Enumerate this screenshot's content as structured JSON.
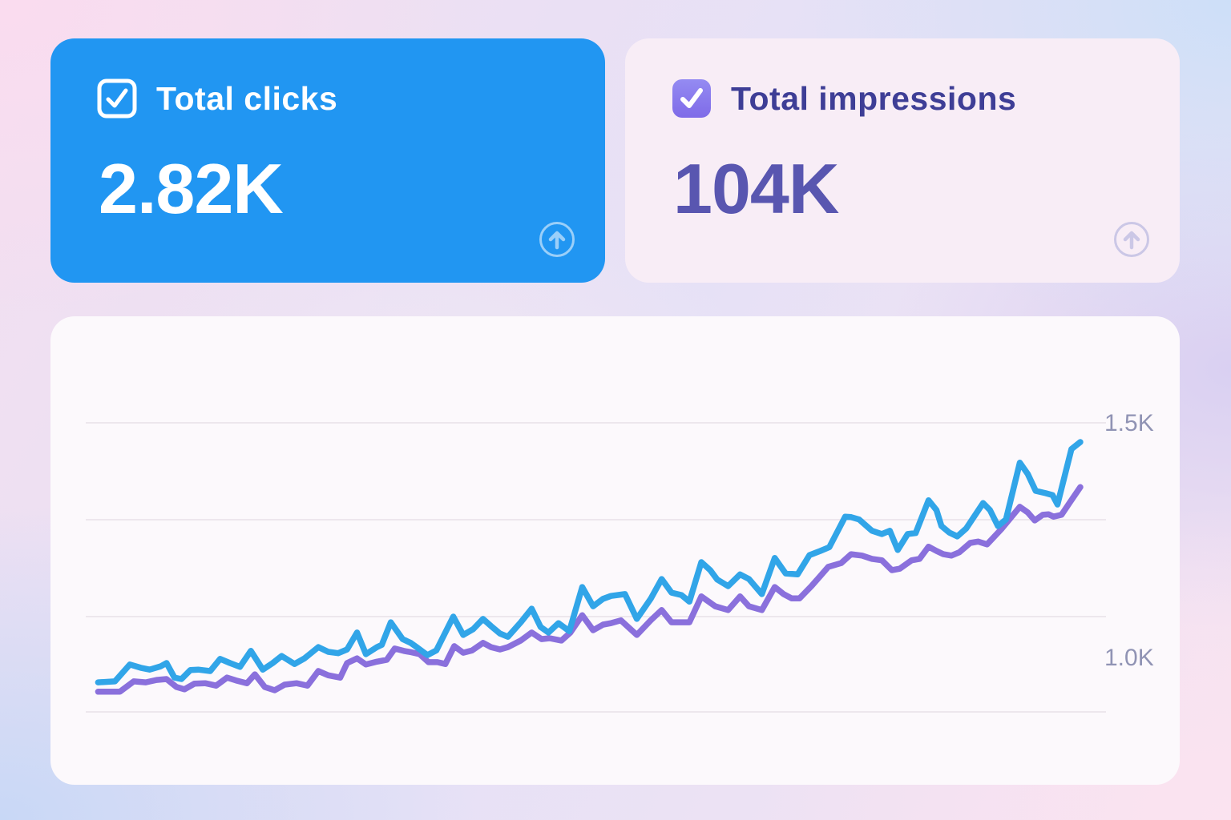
{
  "cards": {
    "clicks": {
      "label": "Total clicks",
      "value": "2.82K",
      "state": "checked",
      "bg_color": "#2196F2",
      "text_color": "#FFFFFF",
      "action_icon": "arrow-up-circle"
    },
    "impressions": {
      "label": "Total impressions",
      "value": "104K",
      "state": "checked",
      "bg_color": "#F8EDF6",
      "label_color": "#3E3E96",
      "value_color": "#5956B0",
      "checkbox_color": "#8678EC",
      "action_icon": "arrow-up-circle"
    }
  },
  "icons": {
    "clicks_checkbox": "checkbox-checked-outline",
    "impressions_checkbox": "checkbox-checked-filled",
    "card_action": "arrow-up-circle"
  },
  "chart_data": {
    "type": "line",
    "title": "",
    "xlabel": "",
    "ylabel": "",
    "x_axis": {
      "labels_visible": false,
      "unit": "time position, percent 0-100 of range"
    },
    "grid": "horizontal gridlines only",
    "legend": "none (metric cards above act as series legend/toggles)",
    "y_ticks": [
      {
        "label": "1.5K",
        "value": 1500
      },
      {
        "label": "1.0K",
        "value": 1000
      }
    ],
    "ylim": [
      900,
      1550
    ],
    "series": [
      {
        "name": "Total impressions",
        "color": "#8A70DC",
        "points": [
          [
            1,
            927
          ],
          [
            3.2,
            927
          ],
          [
            4.6,
            949
          ],
          [
            5.8,
            947
          ],
          [
            6.9,
            952
          ],
          [
            7.9,
            954
          ],
          [
            8.9,
            937
          ],
          [
            9.7,
            932
          ],
          [
            10.7,
            944
          ],
          [
            11.8,
            945
          ],
          [
            12.9,
            940
          ],
          [
            14,
            957
          ],
          [
            14.9,
            951
          ],
          [
            16,
            945
          ],
          [
            16.8,
            964
          ],
          [
            17.8,
            937
          ],
          [
            18.8,
            930
          ],
          [
            19.8,
            942
          ],
          [
            21,
            945
          ],
          [
            22.1,
            940
          ],
          [
            23.2,
            971
          ],
          [
            24.2,
            962
          ],
          [
            25.4,
            957
          ],
          [
            26.1,
            988
          ],
          [
            27.1,
            998
          ],
          [
            28,
            985
          ],
          [
            29.1,
            991
          ],
          [
            30.1,
            995
          ],
          [
            30.9,
            1019
          ],
          [
            31.8,
            1014
          ],
          [
            32.6,
            1011
          ],
          [
            33.4,
            1007
          ],
          [
            34.3,
            990
          ],
          [
            35.2,
            990
          ],
          [
            36,
            986
          ],
          [
            36.9,
            1024
          ],
          [
            37.8,
            1010
          ],
          [
            38.7,
            1015
          ],
          [
            39.8,
            1031
          ],
          [
            40.6,
            1022
          ],
          [
            41.5,
            1017
          ],
          [
            42.3,
            1022
          ],
          [
            43.6,
            1036
          ],
          [
            44.7,
            1053
          ],
          [
            45.7,
            1039
          ],
          [
            46.5,
            1041
          ],
          [
            47.7,
            1036
          ],
          [
            48.6,
            1053
          ],
          [
            49.8,
            1090
          ],
          [
            50.9,
            1058
          ],
          [
            51.9,
            1070
          ],
          [
            52.7,
            1073
          ],
          [
            53.7,
            1079
          ],
          [
            55.3,
            1048
          ],
          [
            56.7,
            1079
          ],
          [
            57.8,
            1101
          ],
          [
            58.8,
            1075
          ],
          [
            59.8,
            1075
          ],
          [
            60.6,
            1075
          ],
          [
            61.8,
            1130
          ],
          [
            63.2,
            1109
          ],
          [
            64.5,
            1101
          ],
          [
            65.7,
            1130
          ],
          [
            66.6,
            1109
          ],
          [
            67.9,
            1101
          ],
          [
            69.2,
            1150
          ],
          [
            70.1,
            1135
          ],
          [
            70.9,
            1126
          ],
          [
            71.7,
            1126
          ],
          [
            72.9,
            1152
          ],
          [
            74.6,
            1193
          ],
          [
            75.9,
            1201
          ],
          [
            76.9,
            1220
          ],
          [
            78,
            1217
          ],
          [
            79,
            1210
          ],
          [
            80,
            1207
          ],
          [
            81,
            1186
          ],
          [
            81.8,
            1189
          ],
          [
            83,
            1207
          ],
          [
            83.8,
            1210
          ],
          [
            84.7,
            1236
          ],
          [
            85.5,
            1227
          ],
          [
            86.2,
            1220
          ],
          [
            87,
            1217
          ],
          [
            87.8,
            1224
          ],
          [
            88.9,
            1244
          ],
          [
            89.7,
            1247
          ],
          [
            90.6,
            1241
          ],
          [
            92.1,
            1275
          ],
          [
            93.9,
            1321
          ],
          [
            94.7,
            1309
          ],
          [
            95.4,
            1292
          ],
          [
            96.2,
            1304
          ],
          [
            96.8,
            1305
          ],
          [
            97.3,
            1300
          ],
          [
            98.1,
            1304
          ],
          [
            98.9,
            1329
          ],
          [
            100,
            1363
          ]
        ]
      },
      {
        "name": "Total clicks",
        "color": "#31A5E8",
        "points": [
          [
            1,
            947
          ],
          [
            2.7,
            949
          ],
          [
            4.2,
            985
          ],
          [
            5.3,
            978
          ],
          [
            6.2,
            974
          ],
          [
            7.3,
            981
          ],
          [
            7.9,
            988
          ],
          [
            8.7,
            957
          ],
          [
            9.4,
            954
          ],
          [
            10.3,
            973
          ],
          [
            11.1,
            974
          ],
          [
            12.3,
            971
          ],
          [
            13.3,
            997
          ],
          [
            14.3,
            988
          ],
          [
            15.3,
            980
          ],
          [
            16.4,
            1014
          ],
          [
            17.6,
            974
          ],
          [
            18.6,
            988
          ],
          [
            19.5,
            1003
          ],
          [
            20.8,
            986
          ],
          [
            21.8,
            998
          ],
          [
            23.2,
            1022
          ],
          [
            24.2,
            1012
          ],
          [
            25.2,
            1009
          ],
          [
            26.1,
            1017
          ],
          [
            27.1,
            1053
          ],
          [
            28,
            1007
          ],
          [
            29.1,
            1022
          ],
          [
            29.6,
            1027
          ],
          [
            30.5,
            1075
          ],
          [
            31.7,
            1039
          ],
          [
            32.5,
            1031
          ],
          [
            33.1,
            1022
          ],
          [
            34.2,
            1005
          ],
          [
            35.1,
            1015
          ],
          [
            36.8,
            1087
          ],
          [
            37.8,
            1048
          ],
          [
            38.8,
            1060
          ],
          [
            39.8,
            1082
          ],
          [
            40.6,
            1067
          ],
          [
            41.5,
            1051
          ],
          [
            42.3,
            1044
          ],
          [
            43.6,
            1075
          ],
          [
            44.7,
            1104
          ],
          [
            45.6,
            1065
          ],
          [
            46.4,
            1053
          ],
          [
            47.4,
            1073
          ],
          [
            48.5,
            1056
          ],
          [
            49.8,
            1150
          ],
          [
            50.9,
            1109
          ],
          [
            51.9,
            1125
          ],
          [
            52.7,
            1131
          ],
          [
            54.1,
            1135
          ],
          [
            55.3,
            1082
          ],
          [
            56.7,
            1125
          ],
          [
            57.8,
            1167
          ],
          [
            58.8,
            1138
          ],
          [
            59.8,
            1133
          ],
          [
            60.6,
            1119
          ],
          [
            61.8,
            1203
          ],
          [
            62.7,
            1186
          ],
          [
            63.4,
            1166
          ],
          [
            64.5,
            1152
          ],
          [
            65.7,
            1177
          ],
          [
            66.6,
            1167
          ],
          [
            67.9,
            1135
          ],
          [
            69.2,
            1212
          ],
          [
            70.3,
            1179
          ],
          [
            71.5,
            1177
          ],
          [
            72.7,
            1218
          ],
          [
            73.8,
            1227
          ],
          [
            74.7,
            1235
          ],
          [
            76.3,
            1300
          ],
          [
            76.9,
            1299
          ],
          [
            77.7,
            1294
          ],
          [
            79,
            1270
          ],
          [
            80,
            1263
          ],
          [
            80.8,
            1270
          ],
          [
            81.6,
            1229
          ],
          [
            82.6,
            1263
          ],
          [
            83.4,
            1265
          ],
          [
            84.7,
            1335
          ],
          [
            85.5,
            1314
          ],
          [
            86,
            1280
          ],
          [
            86.8,
            1266
          ],
          [
            87.6,
            1258
          ],
          [
            88.5,
            1275
          ],
          [
            90.2,
            1329
          ],
          [
            90.9,
            1314
          ],
          [
            91.7,
            1280
          ],
          [
            92.5,
            1294
          ],
          [
            93.9,
            1415
          ],
          [
            94.7,
            1391
          ],
          [
            95.5,
            1355
          ],
          [
            96.5,
            1350
          ],
          [
            97.2,
            1346
          ],
          [
            97.7,
            1326
          ],
          [
            99.1,
            1444
          ],
          [
            100,
            1459
          ]
        ]
      }
    ]
  }
}
